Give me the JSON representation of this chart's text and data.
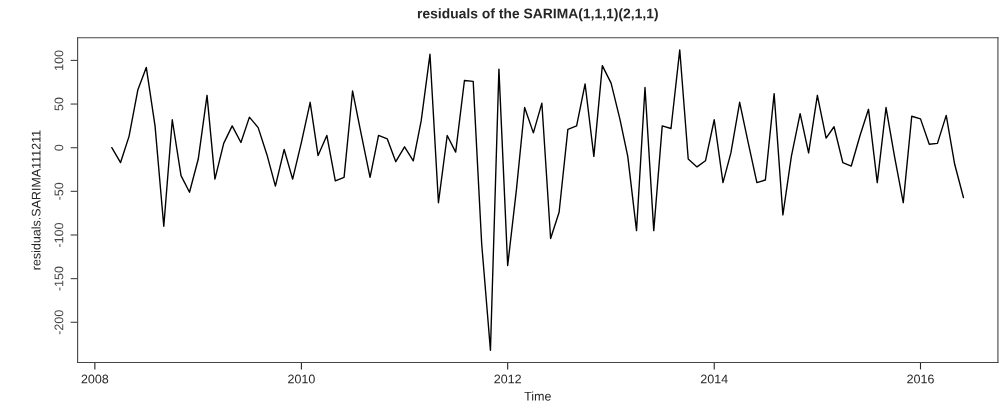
{
  "chart_data": {
    "type": "line",
    "title": "residuals of the SARIMA(1,1,1)(2,1,1)",
    "xlabel": "Time",
    "ylabel": "residuals.SARIMA111211",
    "x": [
      "2008-03",
      "2008-04",
      "2008-05",
      "2008-06",
      "2008-07",
      "2008-08",
      "2008-09",
      "2008-10",
      "2008-11",
      "2008-12",
      "2009-01",
      "2009-02",
      "2009-03",
      "2009-04",
      "2009-05",
      "2009-06",
      "2009-07",
      "2009-08",
      "2009-09",
      "2009-10",
      "2009-11",
      "2009-12",
      "2010-01",
      "2010-02",
      "2010-03",
      "2010-04",
      "2010-05",
      "2010-06",
      "2010-07",
      "2010-08",
      "2010-09",
      "2010-10",
      "2010-11",
      "2010-12",
      "2011-01",
      "2011-02",
      "2011-03",
      "2011-04",
      "2011-05",
      "2011-06",
      "2011-07",
      "2011-08",
      "2011-09",
      "2011-10",
      "2011-11",
      "2011-12",
      "2012-01",
      "2012-02",
      "2012-03",
      "2012-04",
      "2012-05",
      "2012-06",
      "2012-07",
      "2012-08",
      "2012-09",
      "2012-10",
      "2012-11",
      "2012-12",
      "2013-01",
      "2013-02",
      "2013-03",
      "2013-04",
      "2013-05",
      "2013-06",
      "2013-07",
      "2013-08",
      "2013-09",
      "2013-10",
      "2013-11",
      "2013-12",
      "2014-01",
      "2014-02",
      "2014-03",
      "2014-04",
      "2014-05",
      "2014-06",
      "2014-07",
      "2014-08",
      "2014-09",
      "2014-10",
      "2014-11",
      "2014-12",
      "2015-01",
      "2015-02",
      "2015-03",
      "2015-04",
      "2015-05",
      "2015-06",
      "2015-07",
      "2015-08",
      "2015-09",
      "2015-10",
      "2015-11",
      "2015-12",
      "2016-01",
      "2016-02",
      "2016-03",
      "2016-04",
      "2016-05",
      "2016-06"
    ],
    "series": [
      {
        "color": "#000000",
        "values": [
          0,
          -17,
          13,
          66,
          92,
          25,
          -90,
          32,
          -32,
          -51,
          -13,
          60,
          -36,
          5,
          25,
          6,
          35,
          23,
          -8,
          -44,
          -2,
          -36,
          6,
          52,
          -9,
          14,
          -38,
          -34,
          65,
          15,
          -34,
          14,
          10,
          -16,
          1,
          -15,
          31,
          107,
          -63,
          14,
          -5,
          77,
          76,
          -110,
          -232,
          90,
          -135,
          -48,
          46,
          17,
          51,
          -104,
          -74,
          21,
          25,
          73,
          -10,
          94,
          74,
          33,
          -10,
          -95,
          69,
          -95,
          25,
          22,
          112,
          -13,
          -22,
          -15,
          32,
          -40,
          -6,
          52,
          6,
          -40,
          -37,
          62,
          -77,
          -10,
          39,
          -6,
          60,
          11,
          24,
          -17,
          -21,
          14,
          44,
          -40,
          46,
          -10,
          -63,
          36,
          33,
          4,
          5,
          37,
          -19,
          -57
        ]
      }
    ],
    "xlim": [
      "2007-11-01",
      "2016-10-01"
    ],
    "xticks": [
      {
        "value": "2008-01-01",
        "label": "2008"
      },
      {
        "value": "2010-01-01",
        "label": "2010"
      },
      {
        "value": "2012-01-01",
        "label": "2012"
      },
      {
        "value": "2014-01-01",
        "label": "2014"
      },
      {
        "value": "2016-01-01",
        "label": "2016"
      }
    ],
    "ylim": [
      -246,
      126
    ],
    "yticks": [
      -200,
      -150,
      -100,
      -50,
      0,
      50,
      100
    ],
    "grid": false,
    "marker": "none",
    "line_style": "solid"
  }
}
